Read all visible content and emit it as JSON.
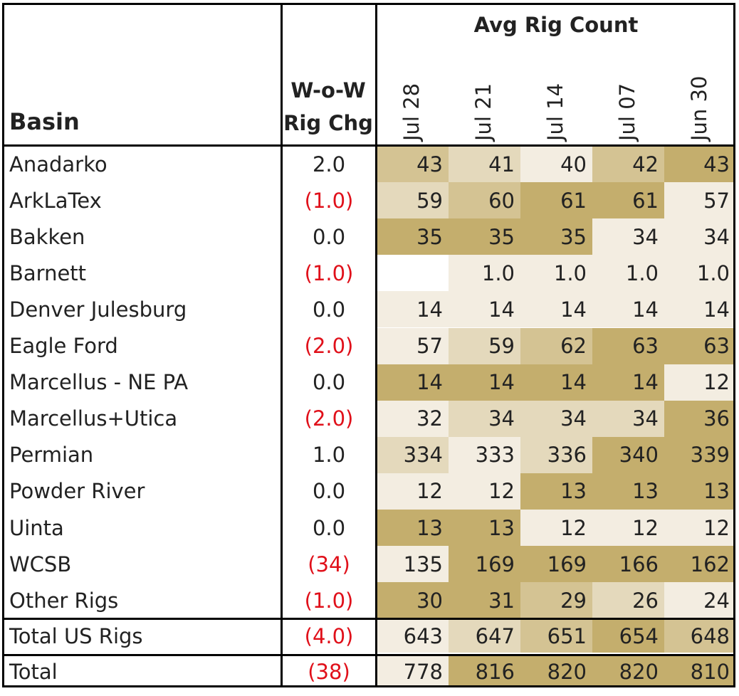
{
  "chart_data": {
    "type": "table",
    "title": "Avg Rig Count",
    "columns": [
      "Basin",
      "W-o-W Rig Chg",
      "Jul 28",
      "Jul 21",
      "Jul 14",
      "Jul 07",
      "Jun 30"
    ],
    "headers": {
      "basin": "Basin",
      "chg_line1": "W-o-W",
      "chg_line2": "Rig Chg",
      "group": "Avg Rig Count"
    },
    "dates": [
      "Jul 28",
      "Jul 21",
      "Jul 14",
      "Jul 07",
      "Jun 30"
    ],
    "rows": [
      {
        "basin": "Anadarko",
        "chg": "2.0",
        "neg": false,
        "values": [
          "43",
          "41",
          "40",
          "42",
          "43"
        ],
        "shade": [
          2,
          1,
          0,
          2,
          3
        ]
      },
      {
        "basin": "ArkLaTex",
        "chg": "(1.0)",
        "neg": true,
        "values": [
          "59",
          "60",
          "61",
          "61",
          "57"
        ],
        "shade": [
          1,
          2,
          3,
          3,
          0
        ]
      },
      {
        "basin": "Bakken",
        "chg": "0.0",
        "neg": false,
        "values": [
          "35",
          "35",
          "35",
          "34",
          "34"
        ],
        "shade": [
          3,
          3,
          3,
          0,
          0
        ]
      },
      {
        "basin": "Barnett",
        "chg": "(1.0)",
        "neg": true,
        "values": [
          "",
          "1.0",
          "1.0",
          "1.0",
          "1.0"
        ],
        "shade": [
          -1,
          0,
          0,
          0,
          0
        ]
      },
      {
        "basin": "Denver Julesburg",
        "chg": "0.0",
        "neg": false,
        "values": [
          "14",
          "14",
          "14",
          "14",
          "14"
        ],
        "shade": [
          0,
          0,
          0,
          0,
          0
        ]
      },
      {
        "basin": "Eagle Ford",
        "chg": "(2.0)",
        "neg": true,
        "values": [
          "57",
          "59",
          "62",
          "63",
          "63"
        ],
        "shade": [
          0,
          1,
          2,
          3,
          3
        ]
      },
      {
        "basin": "Marcellus - NE PA",
        "chg": "0.0",
        "neg": false,
        "values": [
          "14",
          "14",
          "14",
          "14",
          "12"
        ],
        "shade": [
          3,
          3,
          3,
          3,
          0
        ]
      },
      {
        "basin": "Marcellus+Utica",
        "chg": "(2.0)",
        "neg": true,
        "values": [
          "32",
          "34",
          "34",
          "34",
          "36"
        ],
        "shade": [
          0,
          1,
          1,
          1,
          3
        ]
      },
      {
        "basin": "Permian",
        "chg": "1.0",
        "neg": false,
        "values": [
          "334",
          "333",
          "336",
          "340",
          "339"
        ],
        "shade": [
          1,
          0,
          1,
          3,
          3
        ]
      },
      {
        "basin": "Powder River",
        "chg": "0.0",
        "neg": false,
        "values": [
          "12",
          "12",
          "13",
          "13",
          "13"
        ],
        "shade": [
          0,
          0,
          3,
          3,
          3
        ]
      },
      {
        "basin": "Uinta",
        "chg": "0.0",
        "neg": false,
        "values": [
          "13",
          "13",
          "12",
          "12",
          "12"
        ],
        "shade": [
          3,
          3,
          0,
          0,
          0
        ]
      },
      {
        "basin": "WCSB",
        "chg": "(34)",
        "neg": true,
        "values": [
          "135",
          "169",
          "169",
          "166",
          "162"
        ],
        "shade": [
          0,
          3,
          3,
          3,
          3
        ]
      },
      {
        "basin": "Other Rigs",
        "chg": "(1.0)",
        "neg": true,
        "values": [
          "30",
          "31",
          "29",
          "26",
          "24"
        ],
        "shade": [
          3,
          3,
          2,
          1,
          0
        ]
      }
    ],
    "totals": [
      {
        "basin": "Total US Rigs",
        "chg": "(4.0)",
        "neg": true,
        "values": [
          "643",
          "647",
          "651",
          "654",
          "648"
        ],
        "shade": [
          0,
          1,
          2,
          3,
          2
        ]
      },
      {
        "basin": "Total",
        "chg": "(38)",
        "neg": true,
        "values": [
          "778",
          "816",
          "820",
          "820",
          "810"
        ],
        "shade": [
          0,
          3,
          3,
          3,
          3
        ]
      }
    ],
    "colors": {
      "shade0": "#f3ede1",
      "shade1": "#e4d9bc",
      "shade2": "#d4c393",
      "shade3": "#c4ae6d",
      "negative": "#e0101a"
    }
  }
}
